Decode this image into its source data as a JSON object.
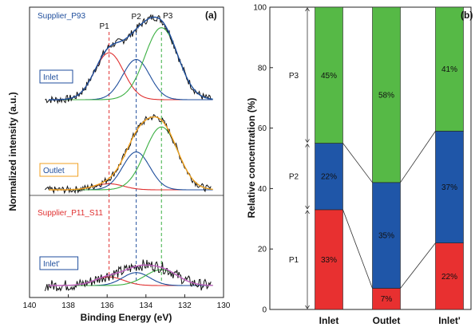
{
  "chart_data": [
    {
      "type": "line",
      "panel_tag": "(a)",
      "xlabel": "Binding Energy (eV)",
      "ylabel": "Normalized intensity (a.u.)",
      "xlim": [
        140,
        130
      ],
      "xticks": [
        140,
        138,
        136,
        134,
        132,
        130
      ],
      "supplier_labels": [
        {
          "text": "Supplier_P93",
          "color": "#1f4e9c"
        },
        {
          "text": "Supplier_P11_S11",
          "color": "#e03030"
        }
      ],
      "peak_labels": [
        {
          "text": "P1",
          "x": 135.9,
          "color": "#e03030"
        },
        {
          "text": "P2",
          "x": 134.5,
          "color": "#1f4e9c"
        },
        {
          "text": "P3",
          "x": 133.2,
          "color": "#3cb043"
        }
      ],
      "spectra": [
        {
          "name": "Inlet",
          "box_color": "#1f4e9c",
          "envelope_color": "#1f4e9c",
          "peaks": [
            {
              "center": 135.9,
              "height": 0.56,
              "sigma": 0.75,
              "color": "#e03030"
            },
            {
              "center": 134.5,
              "height": 0.48,
              "sigma": 0.7,
              "color": "#1f4e9c"
            },
            {
              "center": 133.2,
              "height": 0.86,
              "sigma": 0.85,
              "color": "#3cb043"
            }
          ]
        },
        {
          "name": "Outlet",
          "box_color": "#f0a020",
          "envelope_color": "#f0a020",
          "peaks": [
            {
              "center": 135.9,
              "height": 0.08,
              "sigma": 0.75,
              "color": "#e03030"
            },
            {
              "center": 134.5,
              "height": 0.5,
              "sigma": 0.7,
              "color": "#1f4e9c"
            },
            {
              "center": 133.2,
              "height": 0.83,
              "sigma": 0.85,
              "color": "#3cb043"
            }
          ]
        },
        {
          "name": "Inlet'",
          "box_color": "#1f4e9c",
          "envelope_color": "#c060c0",
          "peaks": [
            {
              "center": 135.9,
              "height": 0.12,
              "sigma": 0.75,
              "color": "#e03030"
            },
            {
              "center": 134.5,
              "height": 0.18,
              "sigma": 0.7,
              "color": "#1f4e9c"
            },
            {
              "center": 133.2,
              "height": 0.22,
              "sigma": 0.85,
              "color": "#3cb043"
            }
          ]
        }
      ]
    },
    {
      "type": "bar",
      "stacked": true,
      "panel_tag": "(b)",
      "ylabel": "Relative concentration (%)",
      "ylim": [
        0,
        100
      ],
      "yticks": [
        0,
        20,
        40,
        60,
        80,
        100
      ],
      "categories": [
        "Inlet",
        "Outlet",
        "Inlet'"
      ],
      "series": [
        {
          "name": "P1",
          "color": "#e83030",
          "values": [
            33,
            7,
            22
          ],
          "labels": [
            "33%",
            "7%",
            "22%"
          ],
          "label_color": "#ffffff"
        },
        {
          "name": "P2",
          "color": "#1f56a8",
          "values": [
            22,
            35,
            37
          ],
          "labels": [
            "22%",
            "35%",
            "37%"
          ],
          "label_color": "#ffffff"
        },
        {
          "name": "P3",
          "color": "#56b946",
          "values": [
            45,
            58,
            41
          ],
          "labels": [
            "45%",
            "58%",
            "41%"
          ],
          "label_color": "#111111"
        }
      ]
    }
  ]
}
